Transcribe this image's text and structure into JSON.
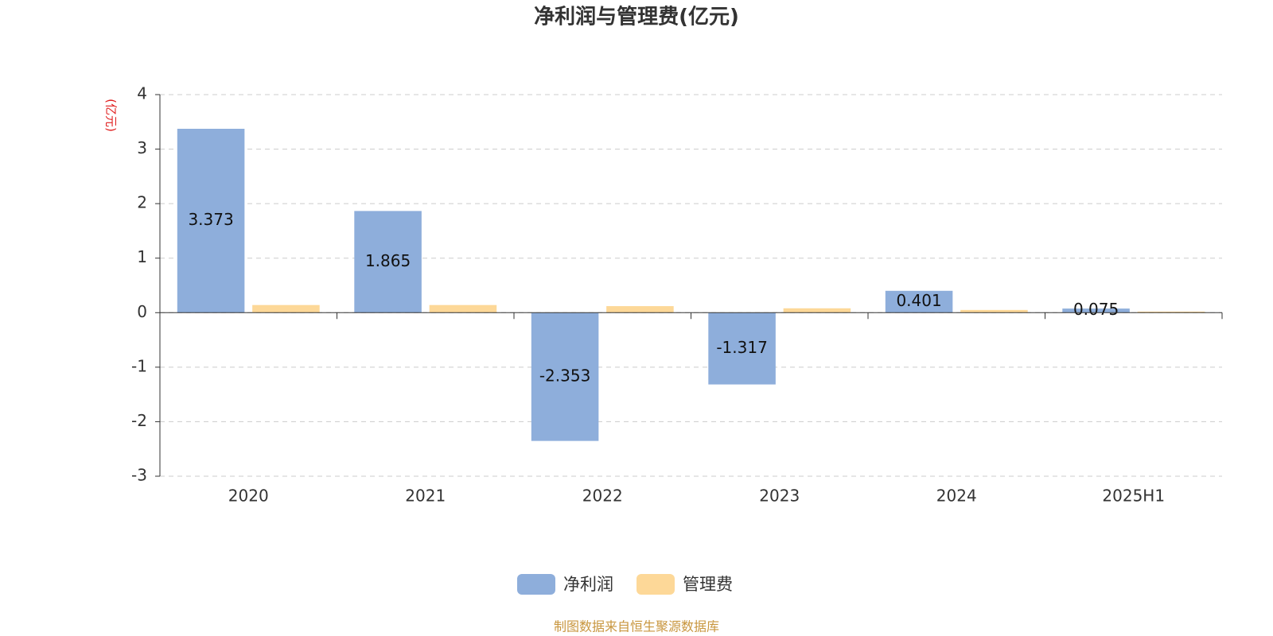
{
  "chart_data": {
    "type": "bar",
    "title": "净利润与管理费(亿元)",
    "y_label": "(亿元)",
    "source": "制图数据来自恒生聚源数据库",
    "categories": [
      "2020",
      "2021",
      "2022",
      "2023",
      "2024",
      "2025H1"
    ],
    "series": [
      {
        "name": "净利润",
        "color": "#8eaedb",
        "values": [
          3.373,
          1.865,
          -2.353,
          -1.317,
          0.401,
          0.075
        ]
      },
      {
        "name": "管理费",
        "color": "#fdd898",
        "values": [
          0.14,
          0.14,
          0.12,
          0.08,
          0.05,
          0.02
        ]
      }
    ],
    "ylim": [
      -3,
      4
    ],
    "yticks": [
      -3,
      -2,
      -1,
      0,
      1,
      2,
      3,
      4
    ],
    "grid": true,
    "legend": "bottom"
  }
}
